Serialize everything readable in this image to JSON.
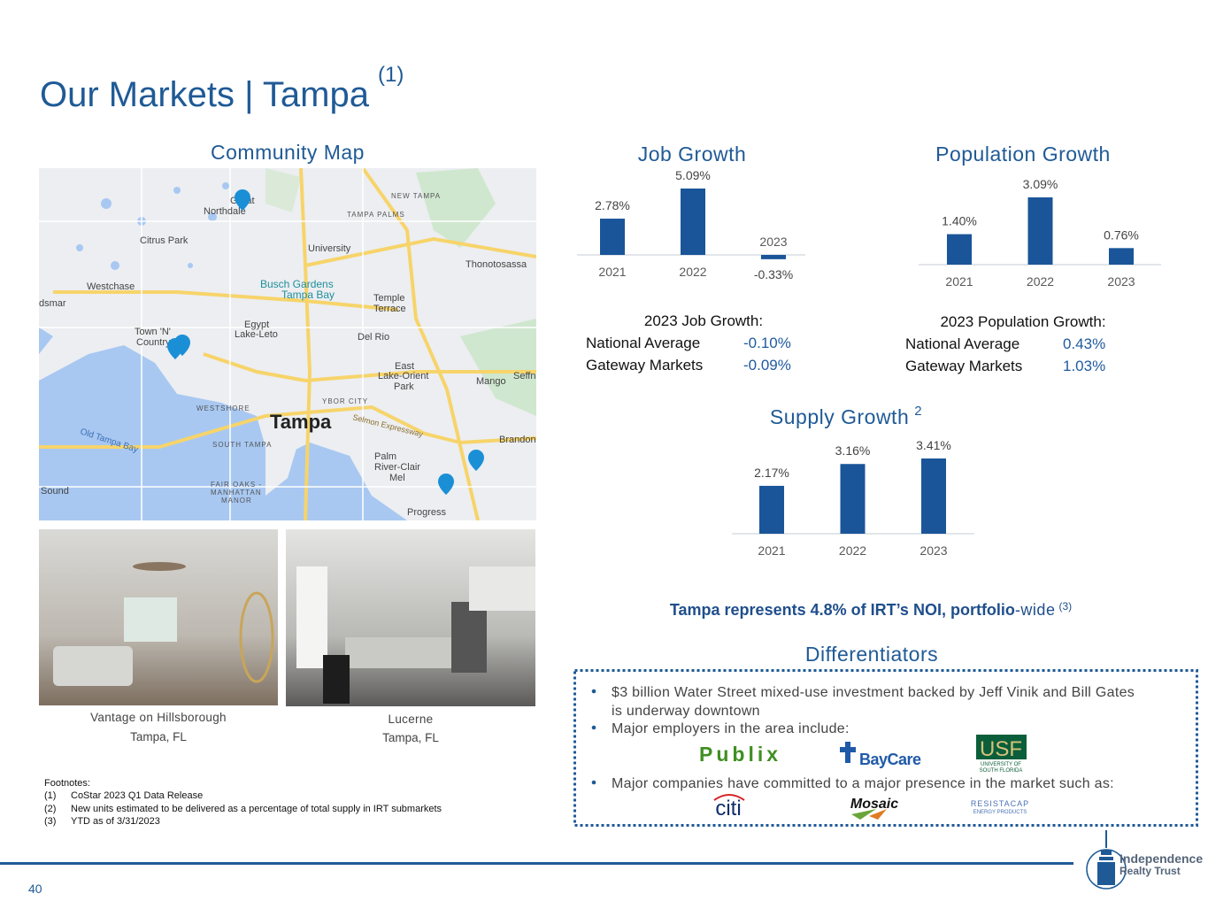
{
  "title": "Our Markets | Tampa",
  "title_note": "(1)",
  "map": {
    "title": "Community Map",
    "labels": [
      "Tampa",
      "Citrus Park",
      "Westchase",
      "University",
      "Busch Gardens",
      "Tampa Bay",
      "Temple",
      "Terrace",
      "Egypt",
      "Lake-Leto",
      "Town 'N'",
      "Country",
      "Del Rio",
      "East",
      "Lake-Orient",
      "Park",
      "Mango",
      "WESTSHORE",
      "YBOR CITY",
      "Old Tampa Bay",
      "SOUTH TAMPA",
      "Palm",
      "River-Clair",
      "Mel",
      "Brandon",
      "Thonotosassa",
      "NEW TAMPA",
      "TAMPA PALMS",
      "Great",
      "Northdale",
      "FAIR OAKS -",
      "MANHATTAN",
      "MANOR",
      "Progress",
      "Sound",
      "Selmon Expressway",
      "Seffn",
      "dsmar"
    ]
  },
  "properties": [
    {
      "name": "Vantage on Hillsborough",
      "location": "Tampa, FL"
    },
    {
      "name": "Lucerne",
      "location": "Tampa, FL"
    }
  ],
  "chart_data": [
    {
      "type": "bar",
      "title": "Job Growth",
      "categories": [
        "2021",
        "2022",
        "2023"
      ],
      "values": [
        2.78,
        5.09,
        -0.33
      ],
      "value_labels": [
        "2.78%",
        "5.09%",
        "-0.33%"
      ],
      "color": "#1a5599"
    },
    {
      "type": "bar",
      "title": "Population Growth",
      "categories": [
        "2021",
        "2022",
        "2023"
      ],
      "values": [
        1.4,
        3.09,
        0.76
      ],
      "value_labels": [
        "1.40%",
        "3.09%",
        "0.76%"
      ],
      "color": "#1a5599"
    },
    {
      "type": "bar",
      "title": "Supply Growth",
      "title_note": "2",
      "categories": [
        "2021",
        "2022",
        "2023"
      ],
      "values": [
        2.17,
        3.16,
        3.41
      ],
      "value_labels": [
        "2.17%",
        "3.16%",
        "3.41%"
      ],
      "color": "#1a5599"
    }
  ],
  "stats": [
    {
      "title": "2023 Job Growth:",
      "rows": [
        [
          "National Average",
          "-0.10%"
        ],
        [
          "Gateway Markets",
          "-0.09%"
        ]
      ]
    },
    {
      "title": "2023 Population Growth:",
      "rows": [
        [
          "National Average",
          "0.43%"
        ],
        [
          "Gateway Markets",
          "1.03%"
        ]
      ]
    }
  ],
  "noi_note": {
    "bold": "Tampa represents 4.8% of IRT’s NOI, portfolio",
    "text": "-wide",
    "note": "(3)"
  },
  "differentiators": {
    "title": "Differentiators",
    "bullets": [
      [
        "$3 billion Water Street mixed-use investment backed by Jeff Vinik and Bill Gates",
        "is underway downtown"
      ],
      [
        "Major employers in the area include:"
      ],
      [
        "Major companies have committed to a major presence in the market such as:"
      ]
    ],
    "employer_logos": [
      "Publix",
      "BayCare",
      "USF",
      "UNIVERSITY OF",
      "SOUTH FLORIDA"
    ],
    "company_logos": [
      "citi",
      "Mosaic",
      "RESISTACAP",
      "ENERGY PRODUCTS"
    ]
  },
  "footnotes": {
    "title": "Footnotes:",
    "items": [
      [
        "(1)",
        "CoStar 2023 Q1 Data Release"
      ],
      [
        "(2)",
        "New units estimated to be delivered as a percentage of total supply in IRT submarkets"
      ],
      [
        "(3)",
        "YTD as of 3/31/2023"
      ]
    ]
  },
  "page_number": "40",
  "logo": [
    "Independence",
    "Realty Trust"
  ]
}
